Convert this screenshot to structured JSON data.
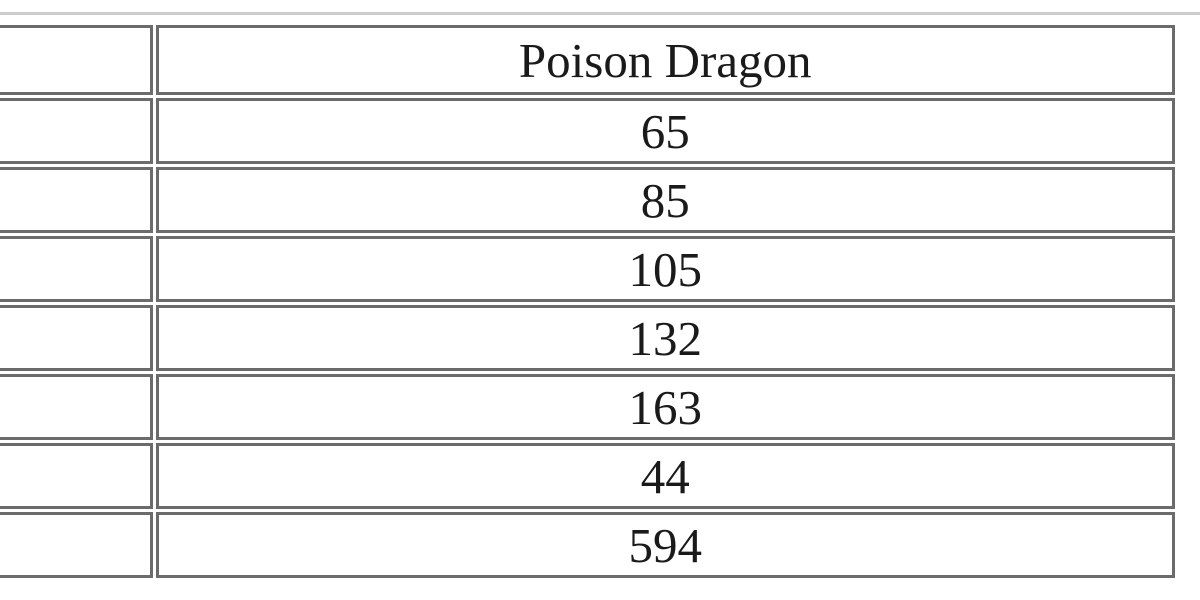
{
  "page": {
    "background_color": "#ffffff",
    "rule_color": "#cccccc"
  },
  "table": {
    "border_color": "#6b6b6b",
    "text_color": "#1a1a1a",
    "column_header": "Poison Dragon",
    "header_label": "",
    "rows": [
      {
        "label": "",
        "value": "65"
      },
      {
        "label": "",
        "value": "85"
      },
      {
        "label": "",
        "value": "105"
      },
      {
        "label": "",
        "value": "132"
      },
      {
        "label": "",
        "value": "163"
      },
      {
        "label": "",
        "value": "44"
      },
      {
        "label": "",
        "value": "594"
      }
    ]
  }
}
